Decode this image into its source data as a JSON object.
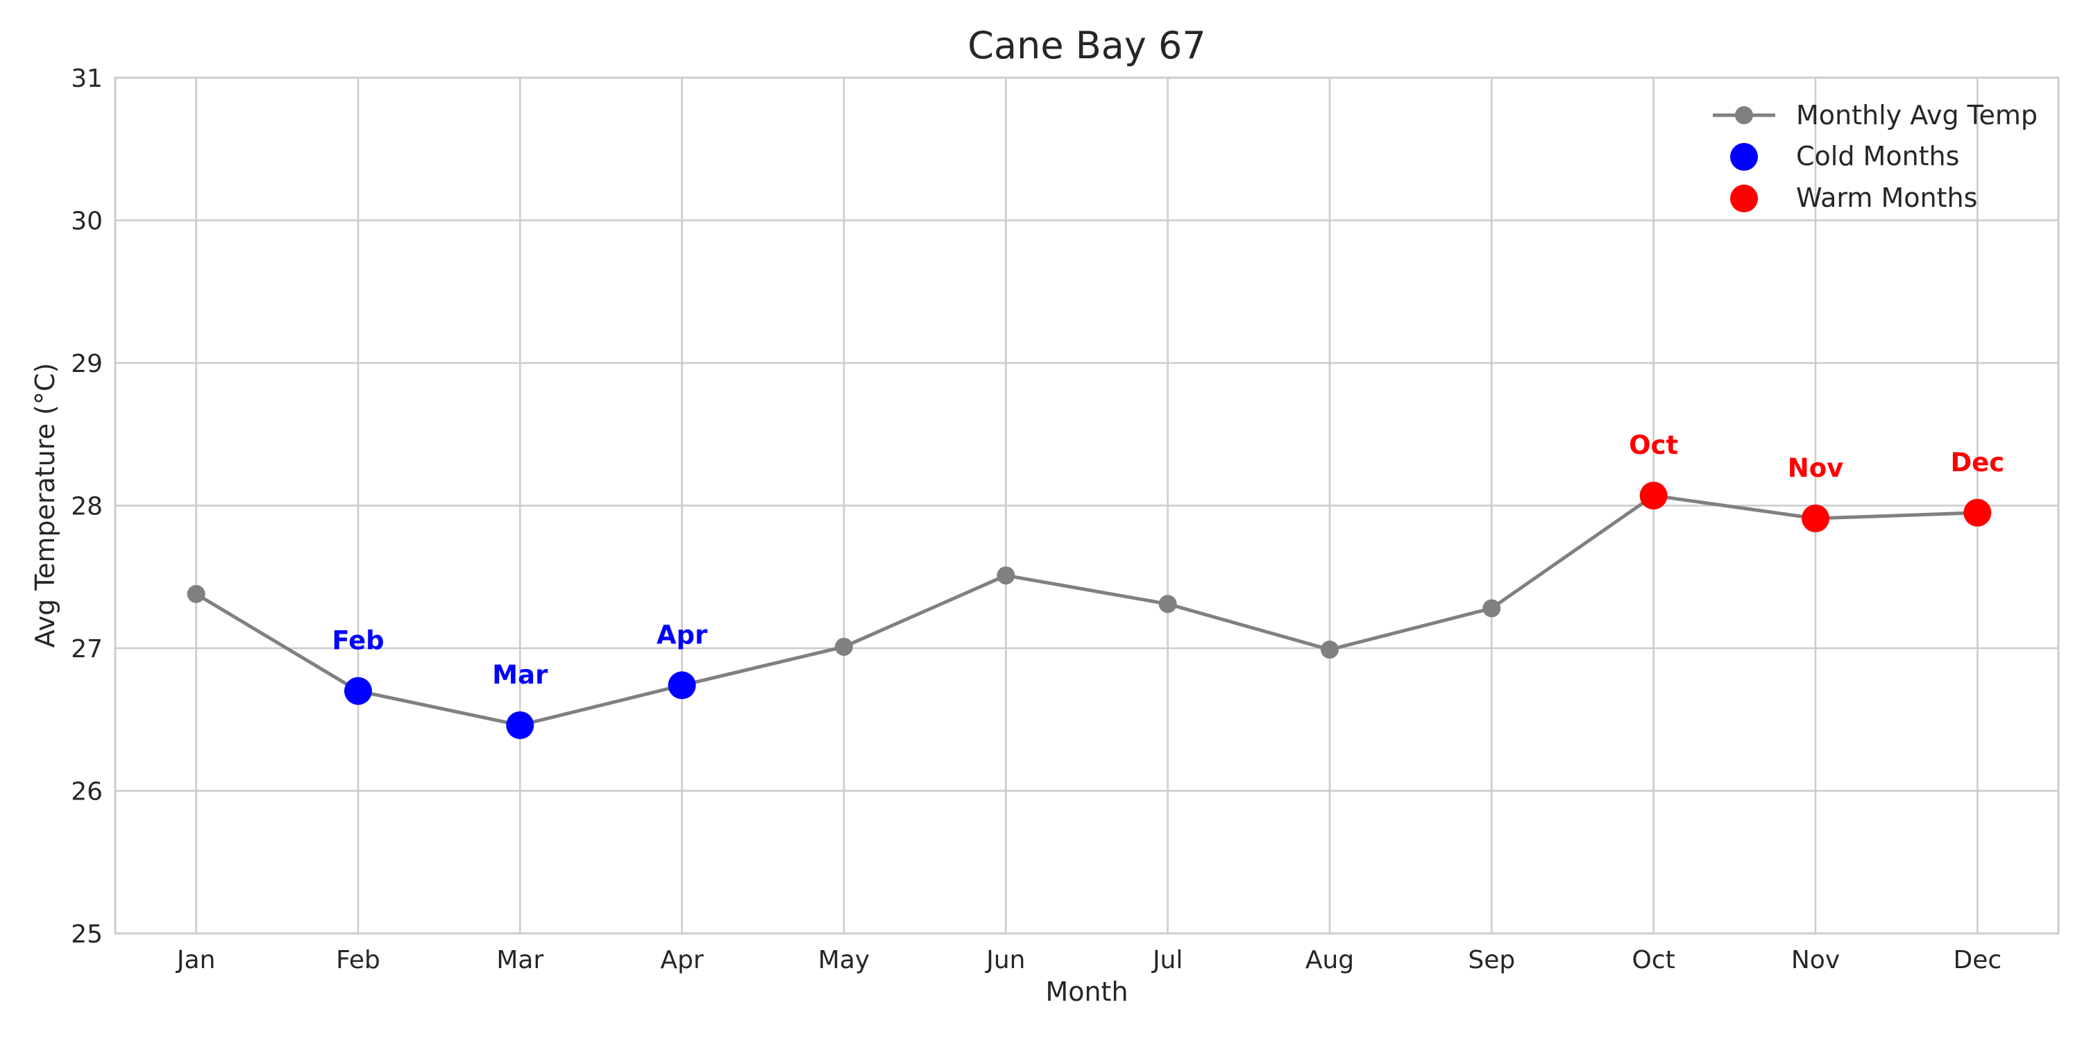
{
  "chart_data": {
    "type": "line",
    "title": "Cane Bay 67",
    "xlabel": "Month",
    "ylabel": "Avg Temperature (°C)",
    "ylim": [
      25,
      31
    ],
    "yticks": [
      "25",
      "26",
      "27",
      "28",
      "29",
      "30",
      "31"
    ],
    "categories": [
      "Jan",
      "Feb",
      "Mar",
      "Apr",
      "May",
      "Jun",
      "Jul",
      "Aug",
      "Sep",
      "Oct",
      "Nov",
      "Dec"
    ],
    "grid": true,
    "legend_position": "top-right",
    "series": [
      {
        "name": "Monthly Avg Temp",
        "values": [
          27.38,
          26.7,
          26.46,
          26.74,
          27.01,
          27.51,
          27.31,
          26.99,
          27.28,
          28.07,
          27.91,
          27.95
        ],
        "color": "#808080"
      }
    ],
    "highlights": [
      {
        "name": "Cold Months",
        "color": "#0000ff",
        "months": [
          "Feb",
          "Mar",
          "Apr"
        ]
      },
      {
        "name": "Warm Months",
        "color": "#ff0000",
        "months": [
          "Oct",
          "Nov",
          "Dec"
        ]
      }
    ]
  }
}
